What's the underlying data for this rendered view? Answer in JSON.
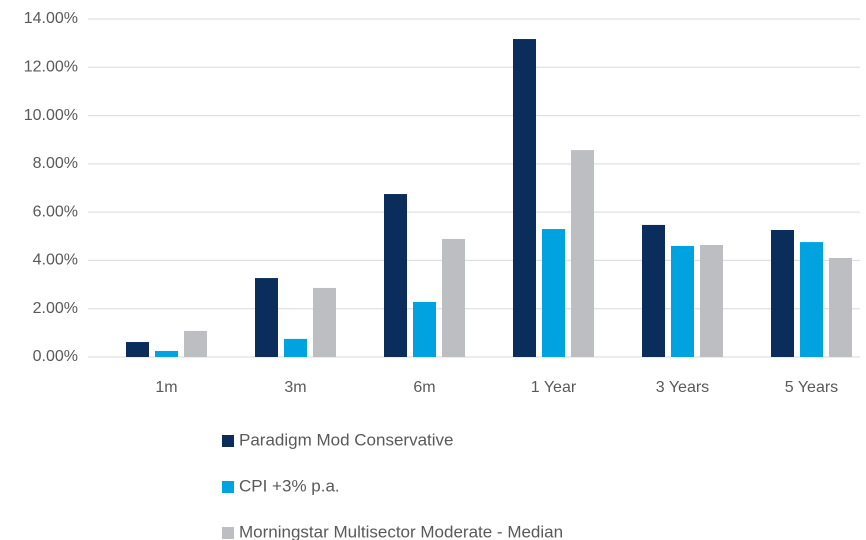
{
  "chart_data": {
    "type": "bar",
    "categories": [
      "1m",
      "3m",
      "6m",
      "1 Year",
      "3 Years",
      "5 Years"
    ],
    "series": [
      {
        "name": "Paradigm Mod Conservative",
        "color": "#0b2d5b",
        "values": [
          0.62,
          3.27,
          6.75,
          13.17,
          5.47,
          5.26
        ]
      },
      {
        "name": "CPI +3% p.a.",
        "color": "#00a3e0",
        "values": [
          0.25,
          0.75,
          2.28,
          5.3,
          4.6,
          4.76
        ]
      },
      {
        "name": "Morningstar Multisector Moderate - Median",
        "color": "#bdbec2",
        "values": [
          1.08,
          2.86,
          4.89,
          8.57,
          4.64,
          4.1
        ]
      }
    ],
    "ylim": [
      0,
      14
    ],
    "yticks": [
      {
        "value": 0,
        "label": "0.00%"
      },
      {
        "value": 2,
        "label": "2.00%"
      },
      {
        "value": 4,
        "label": "4.00%"
      },
      {
        "value": 6,
        "label": "6.00%"
      },
      {
        "value": 8,
        "label": "8.00%"
      },
      {
        "value": 10,
        "label": "10.00%"
      },
      {
        "value": 12,
        "label": "12.00%"
      },
      {
        "value": 14,
        "label": "14.00%"
      }
    ],
    "grid": true,
    "legend": "bottom"
  }
}
